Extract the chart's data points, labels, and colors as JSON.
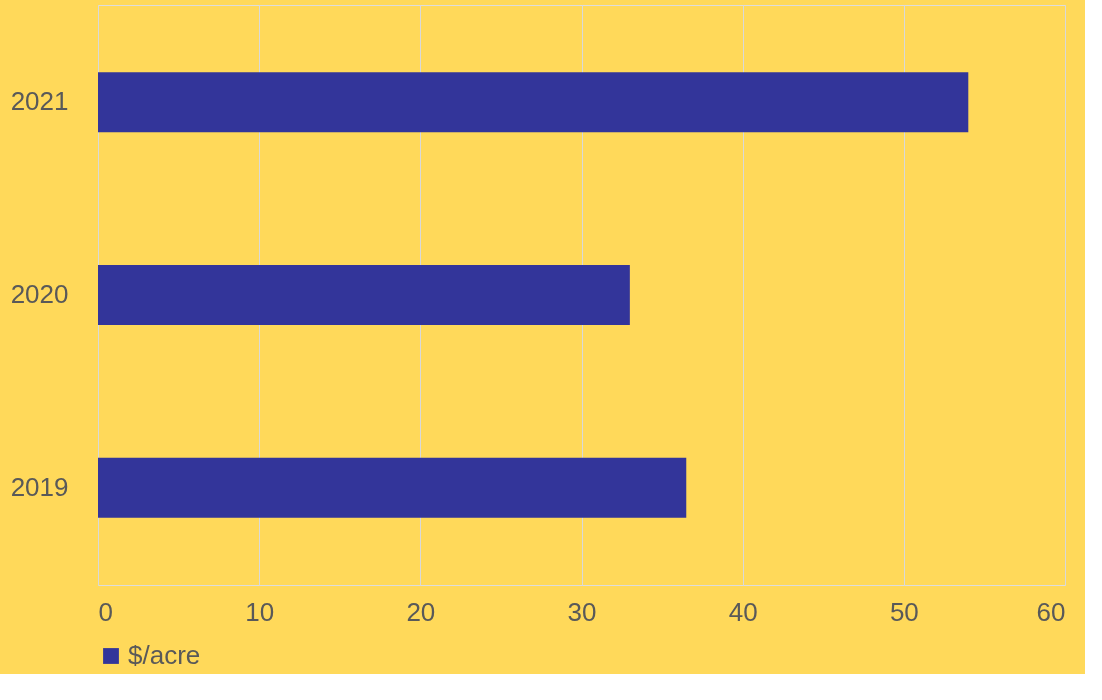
{
  "chart_data": {
    "type": "bar",
    "orientation": "horizontal",
    "categories": [
      "2021",
      "2020",
      "2019"
    ],
    "series": [
      {
        "name": "$/acre",
        "color": "#33359a",
        "values": [
          54,
          33,
          36.5
        ]
      }
    ],
    "xlim": [
      0,
      60
    ],
    "xticks": [
      0,
      10,
      20,
      30,
      40,
      50,
      60
    ],
    "grid": "x",
    "legend": "bottom"
  }
}
